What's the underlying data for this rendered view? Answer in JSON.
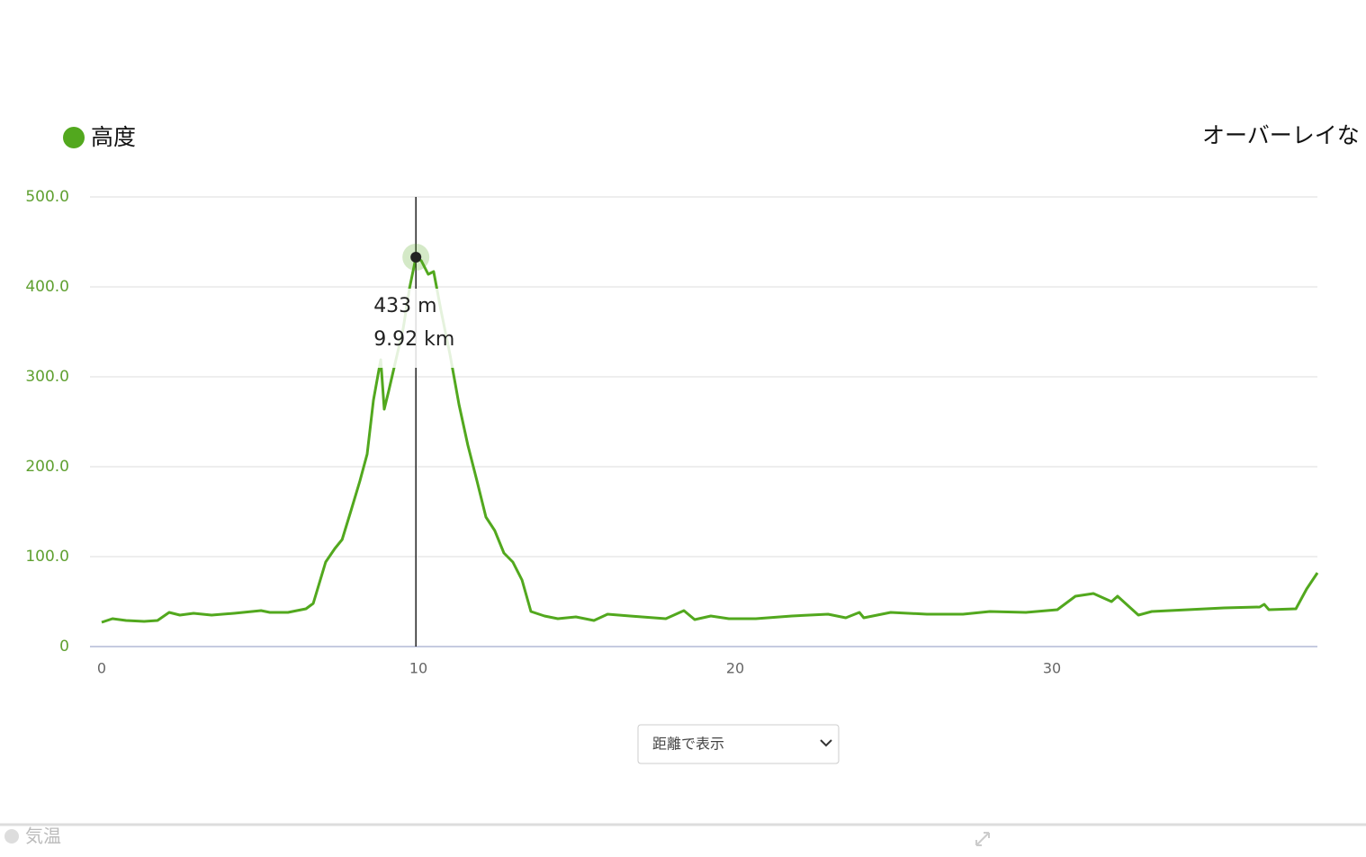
{
  "chart_data": {
    "type": "line",
    "x": [
      0,
      0.34,
      0.77,
      1.34,
      1.76,
      2.13,
      2.47,
      2.9,
      3.47,
      4.18,
      5.03,
      5.31,
      5.88,
      6.45,
      6.68,
      7.07,
      7.36,
      7.59,
      7.87,
      8.15,
      8.38,
      8.58,
      8.81,
      8.92,
      9.06,
      9.29,
      9.52,
      9.72,
      9.92,
      10.09,
      10.31,
      10.48,
      10.71,
      11.0,
      11.28,
      11.56,
      11.85,
      12.13,
      12.41,
      12.7,
      12.98,
      13.27,
      13.55,
      13.98,
      14.4,
      14.97,
      15.54,
      15.97,
      16.68,
      17.81,
      18.38,
      18.72,
      19.23,
      19.8,
      20.65,
      21.79,
      22.93,
      23.49,
      23.92,
      24.06,
      24.91,
      26.05,
      27.19,
      28.04,
      29.18,
      30.17,
      30.74,
      31.31,
      31.88,
      32.07,
      32.73,
      33.15,
      34.29,
      35.43,
      36.56,
      36.7,
      36.85,
      37.7,
      38.04,
      38.38
    ],
    "series": [
      {
        "name": "高度",
        "color": "#52a81e",
        "values": [
          27,
          31,
          29,
          28,
          29,
          38,
          35,
          37,
          35,
          37,
          40,
          38,
          38,
          42,
          48,
          94,
          109,
          119,
          151,
          184,
          214,
          274,
          319,
          264,
          284,
          319,
          354,
          399,
          433,
          429,
          414,
          417,
          374,
          324,
          269,
          224,
          184,
          144,
          129,
          104,
          94,
          74,
          39,
          34,
          31,
          33,
          29,
          36,
          34,
          31,
          40,
          30,
          34,
          31,
          31,
          34,
          36,
          32,
          38,
          32,
          38,
          36,
          36,
          39,
          38,
          41,
          56,
          59,
          50,
          56,
          35,
          39,
          41,
          43,
          44,
          47,
          41,
          42,
          64,
          82
        ]
      }
    ],
    "xlim": [
      0,
      38.38
    ],
    "xticks": [
      0,
      10,
      20,
      30
    ],
    "ylim": [
      0,
      500
    ],
    "yticks": [
      0,
      {
        "value": 100,
        "label": "100.0"
      },
      {
        "value": 200,
        "label": "200.0"
      },
      {
        "value": 300,
        "label": "300.0"
      },
      {
        "value": 400,
        "label": "400.0"
      },
      {
        "value": 500,
        "label": "500.0"
      }
    ],
    "grid": true,
    "tooltip": {
      "x": 9.92,
      "y": 433,
      "lines": [
        "433 m",
        "9.92 km"
      ]
    }
  },
  "overlay_label": "オーバーレイな",
  "view_select": "距離で表示",
  "next_legend": "気温"
}
